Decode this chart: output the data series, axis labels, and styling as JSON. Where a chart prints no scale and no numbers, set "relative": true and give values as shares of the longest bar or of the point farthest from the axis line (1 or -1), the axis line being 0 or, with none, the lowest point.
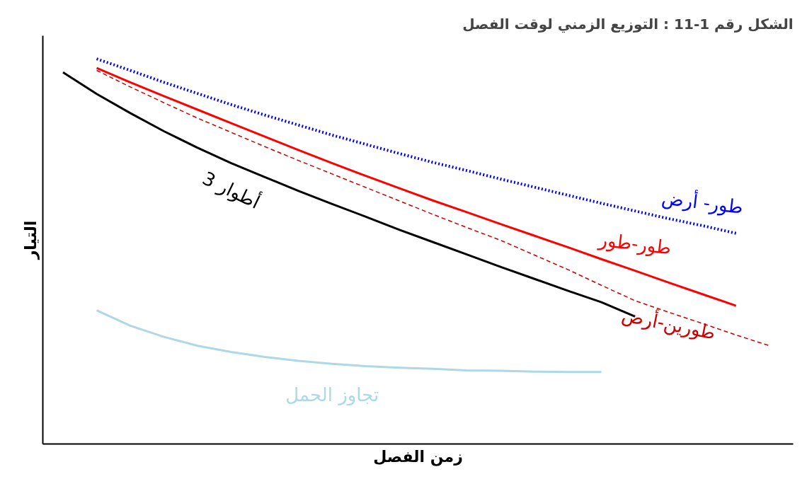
{
  "chart_data": {
    "type": "line",
    "title": "الشكل رقم 1-11 : التوزيع الزمني لوقت الفصل",
    "xlabel": "زمن الفصل",
    "ylabel": "التيار",
    "relative": true,
    "categories": [
      null,
      null,
      null,
      null,
      null,
      null,
      null,
      null,
      null,
      null,
      null,
      null,
      null,
      null,
      null,
      null,
      null,
      null,
      null,
      null,
      null,
      null
    ],
    "series": [
      {
        "name": "طور- أرض",
        "color": "#0000ff",
        "line_style": "dotted",
        "values": [
          null,
          1.0,
          0.97,
          0.939,
          0.91,
          0.881,
          0.854,
          0.828,
          0.802,
          0.778,
          0.754,
          0.731,
          0.71,
          0.688,
          0.667,
          0.646,
          0.625,
          0.605,
          0.585,
          0.567,
          0.547,
          null
        ]
      },
      {
        "name": "طور-طور",
        "color": "#ff0000",
        "line_style": "solid",
        "values": [
          null,
          0.976,
          0.939,
          0.903,
          0.868,
          0.833,
          0.798,
          0.763,
          0.729,
          0.696,
          0.664,
          0.632,
          0.602,
          0.571,
          0.541,
          0.511,
          0.48,
          0.45,
          0.419,
          0.389,
          0.359,
          null
        ]
      },
      {
        "name": "طورين-أرض",
        "color": "#cc0000",
        "line_style": "dashed",
        "values": [
          null,
          0.97,
          0.927,
          0.886,
          0.846,
          0.809,
          0.772,
          0.736,
          0.701,
          0.666,
          0.631,
          0.596,
          0.562,
          0.529,
          0.491,
          0.453,
          0.412,
          0.372,
          0.342,
          0.313,
          0.283,
          0.255
        ]
      },
      {
        "name": "3 أطوار",
        "color": "#000000",
        "line_style": "solid",
        "values": [
          0.965,
          0.909,
          0.859,
          0.812,
          0.769,
          0.729,
          0.693,
          0.657,
          0.623,
          0.59,
          0.556,
          0.524,
          0.492,
          0.46,
          0.429,
          0.398,
          0.368,
          0.331,
          null,
          null,
          null,
          null
        ]
      },
      {
        "name": "تجاوز الحمل",
        "color": "#add8e6",
        "line_style": "solid",
        "values": [
          null,
          0.347,
          0.307,
          0.278,
          0.255,
          0.239,
          0.226,
          0.216,
          0.208,
          0.202,
          0.198,
          0.195,
          0.191,
          0.19,
          0.188,
          0.187,
          0.187,
          null,
          null,
          null,
          null,
          null
        ]
      }
    ]
  }
}
